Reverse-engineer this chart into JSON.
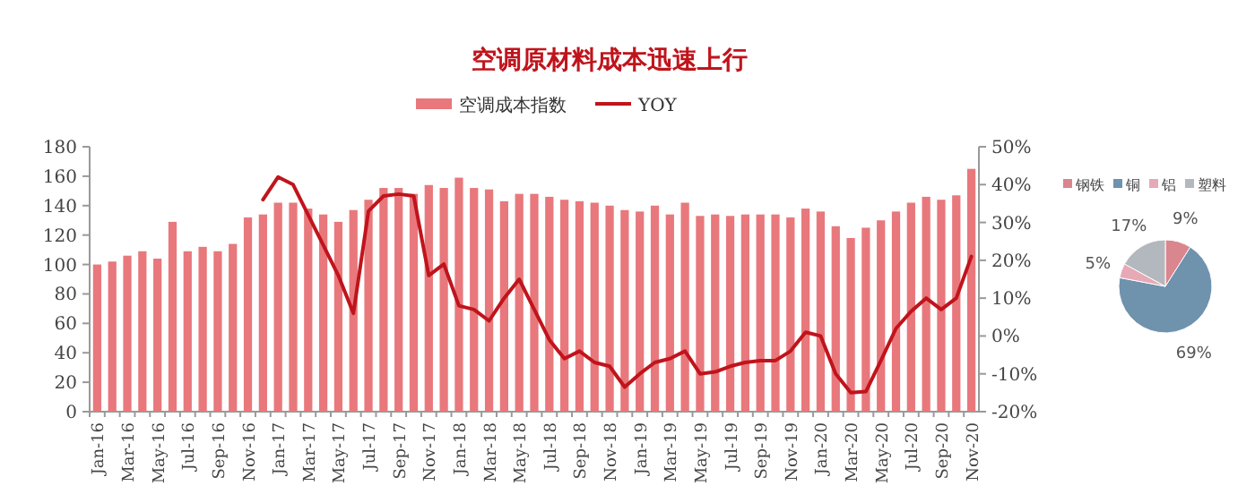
{
  "chart_data": [
    {
      "type": "bar",
      "title": "空调原材料成本迅速上行",
      "legend": "top",
      "categories": [
        "Jan-16",
        null,
        "Mar-16",
        null,
        "May-16",
        null,
        "Jul-16",
        null,
        "Sep-16",
        null,
        "Nov-16",
        null,
        "Jan-17",
        null,
        "Mar-17",
        null,
        "May-17",
        null,
        "Jul-17",
        null,
        "Sep-17",
        null,
        "Nov-17",
        null,
        "Jan-18",
        null,
        "Mar-18",
        null,
        "May-18",
        null,
        "Jul-18",
        null,
        "Sep-18",
        null,
        "Nov-18",
        null,
        "Jan-19",
        null,
        "Mar-19",
        null,
        "May-19",
        null,
        "Jul-19",
        null,
        "Sep-19",
        null,
        "Nov-19",
        null,
        "Jan-20",
        null,
        "Mar-20",
        null,
        "May-20",
        null,
        "Jul-20",
        null,
        "Sep-20",
        null,
        "Nov-20"
      ],
      "ylim": [
        0,
        180
      ],
      "yticks": [
        0,
        20,
        40,
        60,
        80,
        100,
        120,
        140,
        160,
        180
      ],
      "y2lim": [
        -20,
        50
      ],
      "y2ticks": [
        {
          "value": -20,
          "label": "-20%"
        },
        {
          "value": -10,
          "label": "-10%"
        },
        {
          "value": 0,
          "label": "0%"
        },
        {
          "value": 10,
          "label": "10%"
        },
        {
          "value": 20,
          "label": "20%"
        },
        {
          "value": 30,
          "label": "30%"
        },
        {
          "value": 40,
          "label": "40%"
        },
        {
          "value": 50,
          "label": "50%"
        }
      ],
      "series": [
        {
          "name": "空调成本指数",
          "type": "bar",
          "color": "#e8787c",
          "values": [
            100,
            102,
            106,
            109,
            104,
            129,
            109,
            112,
            109,
            114,
            132,
            134,
            142,
            142,
            138,
            134,
            129,
            137,
            144,
            152,
            152,
            148,
            154,
            152,
            159,
            152,
            151,
            143,
            148,
            148,
            146,
            144,
            143,
            142,
            140,
            137,
            136,
            140,
            134,
            142,
            133,
            134,
            133,
            134,
            134,
            134,
            132,
            138,
            136,
            126,
            118,
            125,
            130,
            136,
            142,
            146,
            144,
            147,
            165
          ]
        },
        {
          "name": "YOY",
          "type": "line",
          "axis": "y2",
          "color": "#c0141c",
          "values": [
            null,
            null,
            null,
            null,
            null,
            null,
            null,
            null,
            null,
            null,
            null,
            36,
            42,
            40,
            32,
            24,
            16,
            6,
            33,
            37,
            37.5,
            37,
            16,
            19,
            8,
            7,
            4,
            10,
            15,
            7,
            -1,
            -6,
            -4,
            -7,
            -8,
            -13.5,
            -10,
            -7,
            -6,
            -4,
            -10,
            -9.5,
            -8,
            -7,
            -6.5,
            -6.5,
            -4,
            1,
            0,
            -10,
            -15,
            -14.7,
            -6.5,
            2,
            6.5,
            10,
            7,
            10,
            21
          ]
        }
      ]
    },
    {
      "type": "pie",
      "legend": "top",
      "value_labels": [
        "9%",
        "69%",
        "5%",
        "17%"
      ],
      "categories": [
        "钢铁",
        "铜",
        "铝",
        "塑料"
      ],
      "values": [
        9,
        69,
        5,
        17
      ],
      "colors": [
        "#d9868f",
        "#6f92ad",
        "#e6a9b5",
        "#b3b8be"
      ]
    }
  ]
}
